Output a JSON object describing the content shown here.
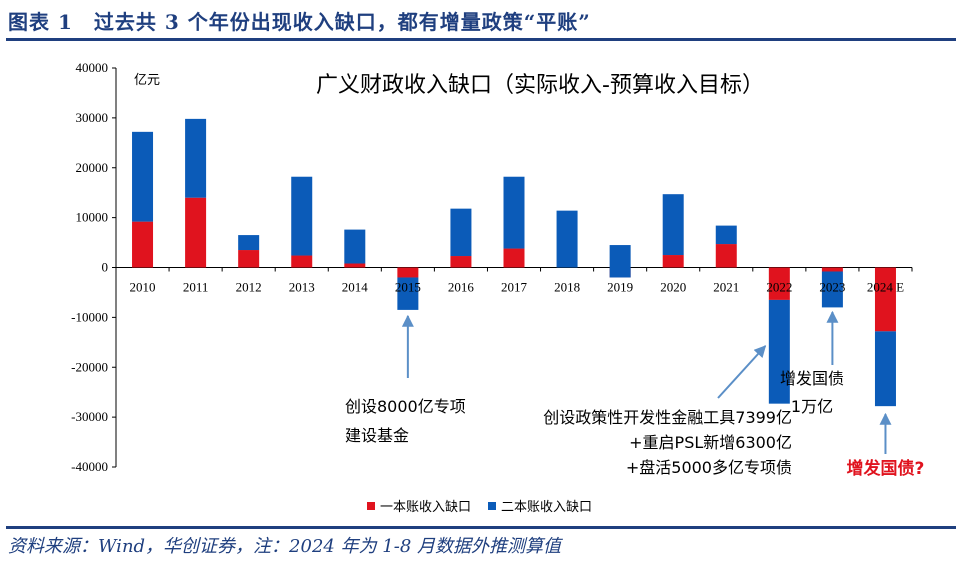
{
  "figure_title": "图表 1　过去共 3 个年份出现收入缺口，都有增量政策“平账”",
  "source_note": "资料来源：Wind，华创证券，注：2024 年为 1-8 月数据外推测算值",
  "colors": {
    "series1": "#e0131e",
    "series2": "#0b5bb8",
    "accent": "#1f3f7f",
    "arrow": "#5b8fc7"
  },
  "chart_data": {
    "type": "bar",
    "stacked": true,
    "title": "广义财政收入缺口（实际收入-预算收入目标）",
    "unit_label": "亿元",
    "categories": [
      "2010",
      "2011",
      "2012",
      "2013",
      "2014",
      "2015",
      "2016",
      "2017",
      "2018",
      "2019",
      "2020",
      "2021",
      "2022",
      "2023",
      "2024 E"
    ],
    "series": [
      {
        "name": "一本账收入缺口",
        "values": [
          9200,
          14000,
          3500,
          2400,
          800,
          -2000,
          2300,
          3800,
          0,
          -2000,
          2500,
          4700,
          -6500,
          -800,
          -12800
        ]
      },
      {
        "name": "二本账收入缺口",
        "values": [
          18000,
          15800,
          3000,
          15800,
          6800,
          -6500,
          9500,
          14400,
          11400,
          6500,
          12200,
          3700,
          -20800,
          -7200,
          -15000
        ]
      }
    ],
    "ylim": [
      -40000,
      40000
    ],
    "ytick_step": 10000,
    "yticks": [
      "40000",
      "30000",
      "20000",
      "10000",
      "0",
      "-10000",
      "-20000",
      "-30000",
      "-40000"
    ],
    "legend_position": "bottom",
    "annotations": [
      {
        "target": "2015",
        "lines": [
          "创设8000亿专项",
          "建设基金"
        ],
        "style": "normal"
      },
      {
        "target": "2022",
        "lines": [
          "创设政策性开发性金融工具7399亿",
          "+重启PSL新增6300亿",
          "+盘活5000多亿专项债"
        ],
        "style": "normal"
      },
      {
        "target": "2023",
        "lines": [
          "增发国债",
          "1万亿"
        ],
        "style": "normal"
      },
      {
        "target": "2024 E",
        "lines": [
          "增发国债?"
        ],
        "style": "red"
      }
    ]
  }
}
